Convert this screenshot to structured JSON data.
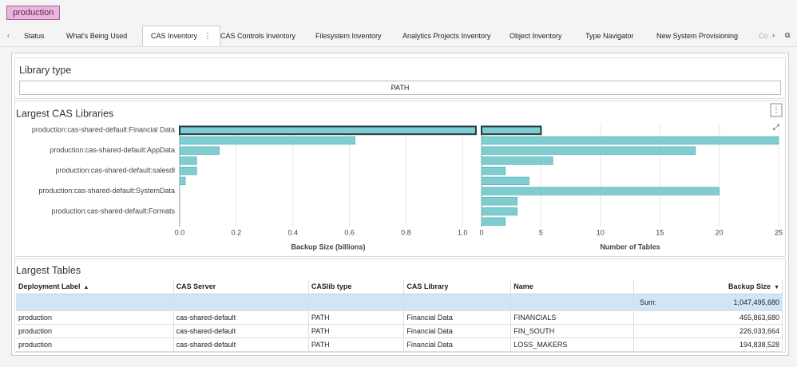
{
  "badge": "production",
  "tabs": [
    "Status",
    "What's Being Used",
    "CAS Inventory",
    "CAS Controls Inventory",
    "Filesystem Inventory",
    "Analytics Projects Inventory",
    "Object Inventory",
    "Type Navigator",
    "New System Provisioning",
    "Co"
  ],
  "library_type": {
    "title": "Library type",
    "value": "PATH"
  },
  "chart_data": [
    {
      "type": "bar",
      "orientation": "horizontal",
      "title": "Largest CAS Libraries",
      "categories": [
        "production:cas-shared-default:Financial Data",
        null,
        "production:cas-shared-default:AppData",
        null,
        "production:cas-shared-default:salesdl",
        null,
        "production:cas-shared-default:SystemData",
        null,
        "production:cas-shared-default:Formats",
        null
      ],
      "values": [
        1.047,
        0.62,
        0.14,
        0.06,
        0.06,
        0.02,
        0,
        0,
        0,
        0
      ],
      "xlabel": "Backup Size (billions)",
      "xlim": [
        0,
        1.05
      ],
      "xticks": [
        {
          "value": 0,
          "label": "0.0"
        },
        0.2,
        0.4,
        0.6,
        0.8,
        {
          "value": 1,
          "label": "1.0"
        }
      ],
      "color": "#7fcdd1",
      "grid": true
    },
    {
      "type": "bar",
      "orientation": "horizontal",
      "values": [
        5,
        25,
        18,
        6,
        2,
        4,
        20,
        3,
        3,
        2
      ],
      "xlabel": "Number of Tables",
      "xlim": [
        0,
        25
      ],
      "xticks": [
        0,
        5,
        10,
        15,
        20,
        25
      ],
      "color": "#7fcdd1",
      "grid": true
    }
  ],
  "table": {
    "title": "Largest Tables",
    "columns": [
      "Deployment Label",
      "CAS Server",
      "CASlib type",
      "CAS Library",
      "Name",
      "Backup Size"
    ],
    "sum_label": "Sum:",
    "sum": "1,047,495,680",
    "rows": [
      [
        "production",
        "cas-shared-default",
        "PATH",
        "Financial Data",
        "FINANCIALS",
        "465,863,680"
      ],
      [
        "production",
        "cas-shared-default",
        "PATH",
        "Financial Data",
        "FIN_SOUTH",
        "226,033,664"
      ],
      [
        "production",
        "cas-shared-default",
        "PATH",
        "Financial Data",
        "LOSS_MAKERS",
        "194,838,528"
      ]
    ]
  }
}
